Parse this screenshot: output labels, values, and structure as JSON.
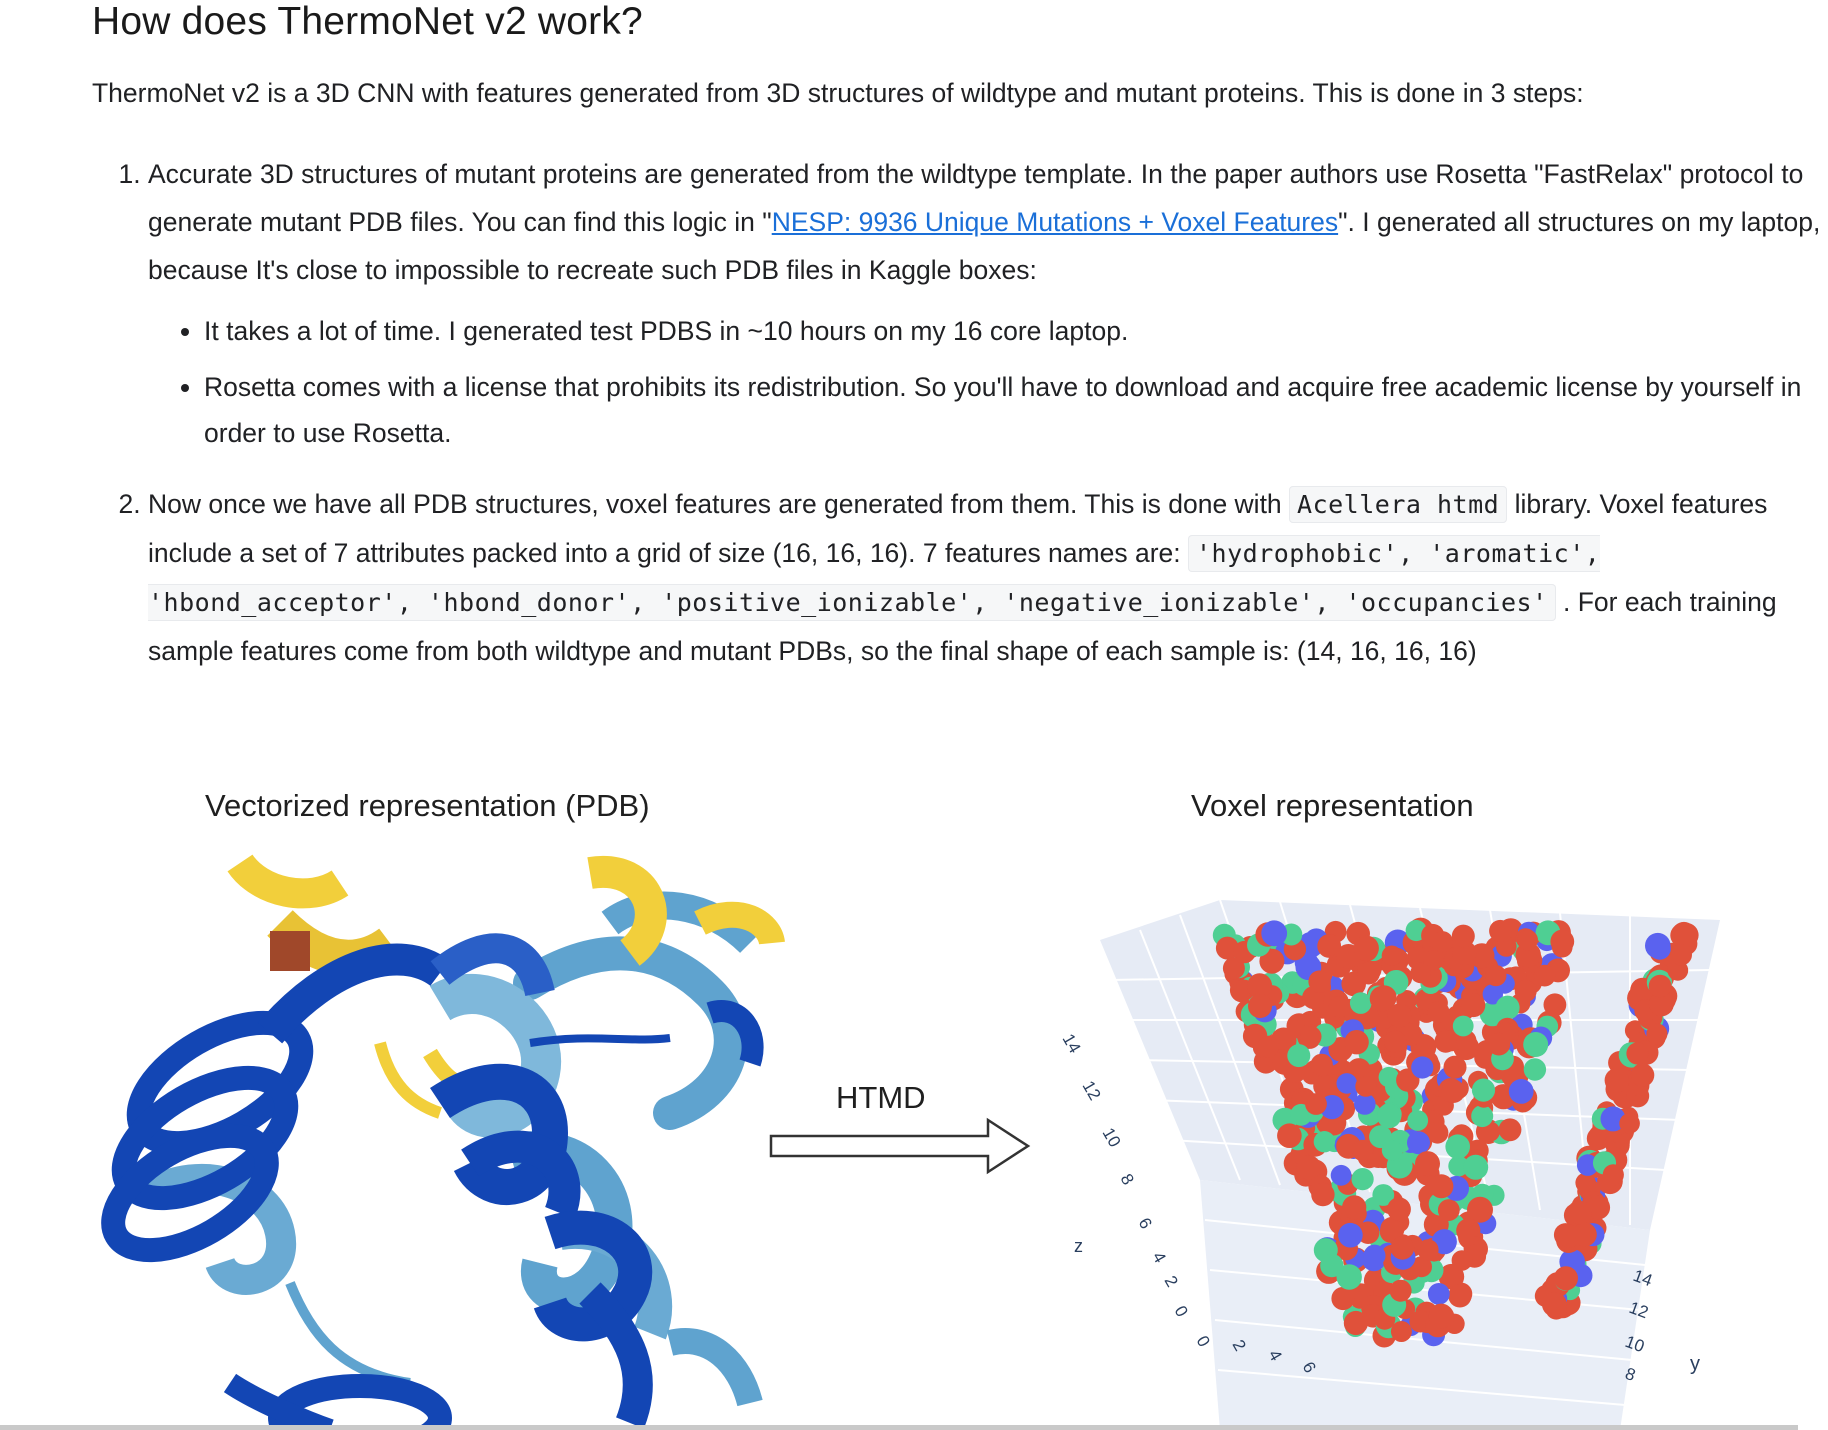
{
  "heading": "How does ThermoNet v2 work?",
  "intro": "ThermoNet v2 is a 3D CNN with features generated from 3D structures of wildtype and mutant proteins. This is done in 3 steps:",
  "step1": {
    "text_a": "Accurate 3D structures of mutant proteins are generated from the wildtype template. In the paper authors use Rosetta \"FastRelax\" protocol to generate mutant PDB files. You can find this logic in \"",
    "link": "NESP: 9936 Unique Mutations + Voxel Features",
    "text_b": "\". I generated all structures on my laptop, because It's close to impossible to recreate such PDB files in Kaggle boxes:",
    "bullets": [
      "It takes a lot of time. I generated test PDBS in ~10 hours on my 16 core laptop.",
      "Rosetta comes with a license that prohibits its redistribution. So you'll have to download and acquire free academic license by yourself in order to use Rosetta."
    ]
  },
  "step2": {
    "text_a": "Now once we have all PDB structures, voxel features are generated from them. This is done with ",
    "code_lib": "Acellera htmd",
    "text_b": " library. Voxel features include a set of 7 attributes packed into a grid of size (16, 16, 16). 7 features names are: ",
    "code_features": "'hydrophobic', 'aromatic', 'hbond_acceptor', 'hbond_donor', 'positive_ionizable', 'negative_ionizable', 'occupancies'",
    "text_c": " . For each training sample features come from both wildtype and mutant PDBs, so the final shape of each sample is: (14, 16, 16, 16)"
  },
  "figure": {
    "left_label": "Vectorized representation (PDB)",
    "right_label": "Voxel representation",
    "arrow_label": "HTMD",
    "z_axis_label": "z",
    "y_axis_label": "y",
    "z_ticks": [
      "14",
      "12",
      "10",
      "8",
      "6",
      "4",
      "2",
      "0"
    ],
    "x_ticks": [
      "0",
      "2",
      "4",
      "6"
    ],
    "y_ticks": [
      "14",
      "12",
      "10",
      "8"
    ],
    "colors": {
      "helix_dark": "#1346b4",
      "helix_light": "#5fa3cf",
      "strand_yellow": "#f2cf3b",
      "voxel_red": "#e0513a",
      "voxel_green": "#4fcf93",
      "voxel_blue": "#5a62ef",
      "grid_bg": "#e6ebf5"
    }
  }
}
